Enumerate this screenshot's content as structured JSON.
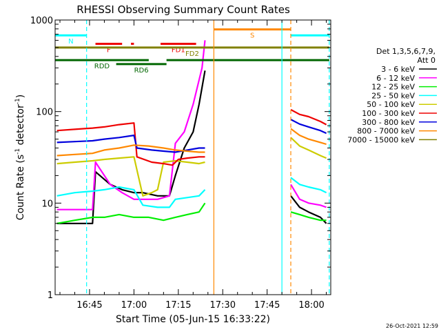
{
  "chart_data": {
    "type": "line",
    "title": "RHESSI Observing Summary Count Rates",
    "xlabel": "Start Time (05-Jun-15 16:33:22)",
    "ylabel_main": "Count Rate (s",
    "ylabel_sup1": "-1",
    "ylabel_mid": " detector",
    "ylabel_sup2": "-1",
    "ylabel_end": ")",
    "yscale": "log",
    "ylim": [
      1,
      1000
    ],
    "xlim": [
      "16:33:22",
      "18:06:30"
    ],
    "x_ticks": [
      {
        "t": "16:45",
        "label": "16:45"
      },
      {
        "t": "17:00",
        "label": "17:00"
      },
      {
        "t": "17:15",
        "label": "17:15"
      },
      {
        "t": "17:30",
        "label": "17:30"
      },
      {
        "t": "17:45",
        "label": "17:45"
      },
      {
        "t": "18:00",
        "label": "18:00"
      }
    ],
    "y_ticks": [
      {
        "v": 1,
        "label": "1"
      },
      {
        "v": 10,
        "label": "10"
      },
      {
        "v": 100,
        "label": "100"
      },
      {
        "v": 1000,
        "label": "1000"
      }
    ],
    "legend": {
      "placement": "right",
      "header": [
        "Det 1,3,5,6,7,9,",
        "Att 0"
      ],
      "entries": [
        {
          "label": "3 - 6 keV",
          "color": "#000000"
        },
        {
          "label": "6 - 12 keV",
          "color": "#ff00ff"
        },
        {
          "label": "12 - 25 keV",
          "color": "#00ee00"
        },
        {
          "label": "25 - 50 keV",
          "color": "#00ffff"
        },
        {
          "label": "50 - 100 keV",
          "color": "#cccc00"
        },
        {
          "label": "100 - 300 keV",
          "color": "#ee0000"
        },
        {
          "label": "300 - 800 keV",
          "color": "#0000dd"
        },
        {
          "label": "800 - 7000 keV",
          "color": "#ff8800"
        },
        {
          "label": "7000 - 15000 keV",
          "color": "#808000"
        }
      ]
    },
    "series": [
      {
        "name": "3 - 6 keV",
        "color": "#000000",
        "segments": [
          [
            [
              "16:34",
              6
            ],
            [
              "16:40",
              6
            ],
            [
              "16:46",
              6
            ],
            [
              "16:47",
              22
            ],
            [
              "16:52",
              16
            ],
            [
              "16:56",
              14
            ],
            [
              "17:00",
              13
            ],
            [
              "17:03",
              13
            ],
            [
              "17:08",
              12
            ],
            [
              "17:12",
              12
            ],
            [
              "17:14",
              20
            ],
            [
              "17:17",
              40
            ],
            [
              "17:20",
              60
            ],
            [
              "17:22",
              120
            ],
            [
              "17:24",
              280
            ]
          ],
          [
            [
              "17:53",
              12
            ],
            [
              "17:56",
              9
            ],
            [
              "17:59",
              8
            ],
            [
              "18:03",
              7
            ],
            [
              "18:05",
              6
            ]
          ]
        ]
      },
      {
        "name": "6 - 12 keV",
        "color": "#ff00ff",
        "segments": [
          [
            [
              "16:34",
              8.5
            ],
            [
              "16:40",
              8.5
            ],
            [
              "16:46",
              8.5
            ],
            [
              "16:47",
              28
            ],
            [
              "16:52",
              16
            ],
            [
              "16:56",
              13
            ],
            [
              "17:00",
              11
            ],
            [
              "17:03",
              11
            ],
            [
              "17:08",
              11
            ],
            [
              "17:12",
              12
            ],
            [
              "17:14",
              45
            ],
            [
              "17:17",
              60
            ],
            [
              "17:20",
              120
            ],
            [
              "17:23",
              300
            ],
            [
              "17:24",
              600
            ]
          ],
          [
            [
              "17:53",
              16
            ],
            [
              "17:56",
              11
            ],
            [
              "17:59",
              10
            ],
            [
              "18:03",
              9.5
            ],
            [
              "18:05",
              9
            ]
          ]
        ]
      },
      {
        "name": "12 - 25 keV",
        "color": "#00ee00",
        "segments": [
          [
            [
              "16:34",
              6
            ],
            [
              "16:40",
              6.5
            ],
            [
              "16:46",
              7
            ],
            [
              "16:50",
              7
            ],
            [
              "16:55",
              7.5
            ],
            [
              "17:00",
              7
            ],
            [
              "17:05",
              7
            ],
            [
              "17:10",
              6.5
            ],
            [
              "17:14",
              7
            ],
            [
              "17:18",
              7.5
            ],
            [
              "17:22",
              8
            ],
            [
              "17:24",
              10
            ]
          ],
          [
            [
              "17:53",
              8
            ],
            [
              "17:56",
              7.5
            ],
            [
              "17:59",
              7
            ],
            [
              "18:03",
              6.5
            ],
            [
              "18:05",
              6.5
            ]
          ]
        ]
      },
      {
        "name": "25 - 50 keV",
        "color": "#00ffff",
        "segments": [
          [
            [
              "16:34",
              12
            ],
            [
              "16:40",
              13
            ],
            [
              "16:46",
              13.5
            ],
            [
              "16:50",
              14
            ],
            [
              "16:55",
              15
            ],
            [
              "17:00",
              14
            ],
            [
              "17:03",
              9.5
            ],
            [
              "17:08",
              9
            ],
            [
              "17:12",
              9
            ],
            [
              "17:14",
              11
            ],
            [
              "17:18",
              11.5
            ],
            [
              "17:22",
              12
            ],
            [
              "17:24",
              14
            ]
          ],
          [
            [
              "17:53",
              19
            ],
            [
              "17:56",
              16
            ],
            [
              "17:59",
              15
            ],
            [
              "18:03",
              14
            ],
            [
              "18:05",
              13
            ]
          ]
        ]
      },
      {
        "name": "50 - 100 keV",
        "color": "#cccc00",
        "segments": [
          [
            [
              "16:34",
              27
            ],
            [
              "16:40",
              28
            ],
            [
              "16:46",
              29
            ],
            [
              "16:50",
              30
            ],
            [
              "16:55",
              31
            ],
            [
              "17:00",
              32
            ],
            [
              "17:03",
              12
            ],
            [
              "17:06",
              13
            ],
            [
              "17:08",
              14
            ],
            [
              "17:10",
              28
            ],
            [
              "17:14",
              29
            ],
            [
              "17:18",
              28
            ],
            [
              "17:22",
              27
            ],
            [
              "17:24",
              28
            ]
          ],
          [
            [
              "17:53",
              52
            ],
            [
              "17:56",
              42
            ],
            [
              "17:59",
              38
            ],
            [
              "18:03",
              33
            ],
            [
              "18:05",
              31
            ]
          ]
        ]
      },
      {
        "name": "100 - 300 keV",
        "color": "#ee0000",
        "segments": [
          [
            [
              "16:34",
              62
            ],
            [
              "16:40",
              64
            ],
            [
              "16:46",
              66
            ],
            [
              "16:50",
              68
            ],
            [
              "16:55",
              72
            ],
            [
              "17:00",
              75
            ],
            [
              "17:01",
              32
            ],
            [
              "17:06",
              28
            ],
            [
              "17:10",
              27
            ],
            [
              "17:13",
              26
            ],
            [
              "17:15",
              30
            ],
            [
              "17:18",
              31
            ],
            [
              "17:22",
              32
            ],
            [
              "17:24",
              32
            ]
          ],
          [
            [
              "17:53",
              105
            ],
            [
              "17:56",
              93
            ],
            [
              "17:59",
              88
            ],
            [
              "18:03",
              78
            ],
            [
              "18:05",
              72
            ]
          ]
        ]
      },
      {
        "name": "300 - 800 keV",
        "color": "#0000dd",
        "segments": [
          [
            [
              "16:34",
              46
            ],
            [
              "16:40",
              47
            ],
            [
              "16:46",
              48
            ],
            [
              "16:50",
              50
            ],
            [
              "16:55",
              52
            ],
            [
              "17:00",
              55
            ],
            [
              "17:01",
              40
            ],
            [
              "17:06",
              38
            ],
            [
              "17:10",
              37
            ],
            [
              "17:14",
              36
            ],
            [
              "17:18",
              38
            ],
            [
              "17:22",
              40
            ],
            [
              "17:24",
              40
            ]
          ],
          [
            [
              "17:53",
              82
            ],
            [
              "17:56",
              73
            ],
            [
              "17:59",
              68
            ],
            [
              "18:03",
              62
            ],
            [
              "18:05",
              58
            ]
          ]
        ]
      },
      {
        "name": "800 - 7000 keV",
        "color": "#ff8800",
        "segments": [
          [
            [
              "16:34",
              33
            ],
            [
              "16:40",
              34
            ],
            [
              "16:46",
              35
            ],
            [
              "16:50",
              38
            ],
            [
              "16:55",
              40
            ],
            [
              "17:00",
              43
            ],
            [
              "17:05",
              42
            ],
            [
              "17:10",
              40
            ],
            [
              "17:14",
              38
            ],
            [
              "17:18",
              37
            ],
            [
              "17:22",
              36
            ],
            [
              "17:24",
              36
            ]
          ],
          [
            [
              "17:53",
              65
            ],
            [
              "17:56",
              55
            ],
            [
              "17:59",
              50
            ],
            [
              "18:03",
              46
            ],
            [
              "18:05",
              44
            ]
          ]
        ]
      }
    ],
    "flag_bars": [
      {
        "label": "N",
        "color": "#00ffff",
        "y": 680,
        "t0": "16:33",
        "t1": "16:44"
      },
      {
        "label": "",
        "color": "#00ffff",
        "y": 680,
        "t0": "17:53",
        "t1": "18:06"
      },
      {
        "label": "F",
        "color": "#ee0000",
        "y": 550,
        "t0": "16:47",
        "t1": "16:56"
      },
      {
        "label": "",
        "color": "#ee0000",
        "y": 550,
        "t0": "16:59",
        "t1": "17:00"
      },
      {
        "label": "FD1",
        "color": "#ee0000",
        "y": 550,
        "t0": "17:09",
        "t1": "17:21"
      },
      {
        "label": "S",
        "color": "#ff8800",
        "y": 790,
        "t0": "17:27",
        "t1": "17:53"
      },
      {
        "label": "FD2",
        "color": "#808000",
        "y": 500,
        "t0": "16:33",
        "t1": "18:06"
      },
      {
        "label": "RDD",
        "color": "#006600",
        "y": 365,
        "t0": "16:33",
        "t1": "17:05"
      },
      {
        "label": "RD6",
        "color": "#006600",
        "y": 330,
        "t0": "16:54",
        "t1": "17:11"
      },
      {
        "label": "",
        "color": "#006600",
        "y": 365,
        "t0": "17:11",
        "t1": "18:06"
      }
    ],
    "vertical_markers": [
      {
        "t": "16:44",
        "color": "#00ffff",
        "style": "dashed"
      },
      {
        "t": "17:27",
        "color": "#ff8800",
        "style": "solid"
      },
      {
        "t": "17:50",
        "color": "#00ffff",
        "style": "solid"
      },
      {
        "t": "17:53",
        "color": "#ff8800",
        "style": "dashed"
      },
      {
        "t": "18:06",
        "color": "#00ffff",
        "style": "dashed"
      }
    ],
    "timestamp": "26-Oct-2021 12:59"
  }
}
